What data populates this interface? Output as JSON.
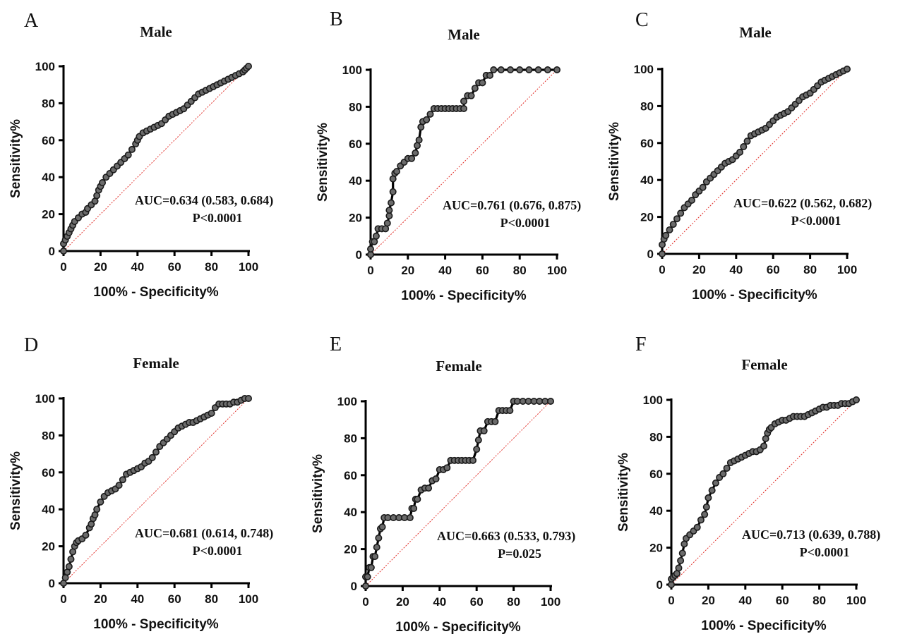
{
  "chart_data": [
    {
      "id": "A",
      "type": "line",
      "panel_label": "A",
      "title": "Male",
      "xlabel": "100% - Specificity%",
      "ylabel": "Sensitivity%",
      "xlim": [
        0,
        100
      ],
      "ylim": [
        0,
        100
      ],
      "xticks": [
        "0",
        "20",
        "40",
        "60",
        "80",
        "100"
      ],
      "yticks": [
        "0",
        "20",
        "40",
        "60",
        "80",
        "100"
      ],
      "annotation_auc": "AUC=0.634 (0.583, 0.684)",
      "annotation_p": "P<0.0001",
      "reference_line": true,
      "series": [
        {
          "x": [
            0,
            0,
            1,
            2,
            3,
            4,
            5,
            6,
            8,
            10,
            12,
            13,
            15,
            17,
            18,
            19,
            20,
            21,
            23,
            25,
            27,
            29,
            31,
            33,
            35,
            37,
            39,
            40,
            41,
            43,
            45,
            47,
            49,
            51,
            53,
            55,
            57,
            59,
            61,
            63,
            65,
            67,
            69,
            71,
            73,
            75,
            77,
            79,
            81,
            83,
            85,
            87,
            89,
            91,
            93,
            95,
            97,
            98,
            99,
            100
          ],
          "y": [
            0,
            4,
            6,
            8,
            10,
            12,
            14,
            16,
            18,
            20,
            21,
            23,
            25,
            27,
            30,
            33,
            35,
            37,
            40,
            42,
            44,
            46,
            48,
            50,
            52,
            55,
            58,
            60,
            62,
            64,
            65,
            66,
            67,
            68,
            69,
            71,
            73,
            74,
            75,
            76,
            77,
            79,
            81,
            83,
            85,
            86,
            87,
            88,
            89,
            90,
            91,
            92,
            93,
            94,
            95,
            96,
            97,
            98,
            99,
            100
          ]
        }
      ]
    },
    {
      "id": "B",
      "type": "line",
      "panel_label": "B",
      "title": "Male",
      "xlabel": "100% - Specificity%",
      "ylabel": "Sensitivity%",
      "xlim": [
        0,
        100
      ],
      "ylim": [
        0,
        100
      ],
      "xticks": [
        "0",
        "20",
        "40",
        "60",
        "80",
        "100"
      ],
      "yticks": [
        "0",
        "20",
        "40",
        "60",
        "80",
        "100"
      ],
      "annotation_auc": "AUC=0.761 (0.676, 0.875)",
      "annotation_p": "P<0.0001",
      "reference_line": true,
      "series": [
        {
          "x": [
            0,
            0,
            1,
            2,
            3,
            4,
            6,
            8,
            9,
            10,
            10,
            11,
            12,
            12,
            13,
            14,
            16,
            18,
            20,
            22,
            24,
            25,
            26,
            27,
            28,
            30,
            32,
            34,
            36,
            38,
            40,
            42,
            44,
            46,
            48,
            50,
            50,
            52,
            54,
            56,
            58,
            60,
            62,
            64,
            66,
            70,
            75,
            80,
            85,
            90,
            95,
            100
          ],
          "y": [
            0,
            3,
            7,
            7,
            10,
            14,
            14,
            14,
            17,
            21,
            24,
            28,
            34,
            41,
            44,
            45,
            48,
            50,
            52,
            52,
            55,
            59,
            62,
            69,
            72,
            73,
            76,
            79,
            79,
            79,
            79,
            79,
            79,
            79,
            79,
            79,
            83,
            86,
            86,
            90,
            93,
            93,
            97,
            97,
            100,
            100,
            100,
            100,
            100,
            100,
            100,
            100
          ]
        }
      ]
    },
    {
      "id": "C",
      "type": "line",
      "panel_label": "C",
      "title": "Male",
      "xlabel": "100% - Specificity%",
      "ylabel": "Sensitivity%",
      "xlim": [
        0,
        100
      ],
      "ylim": [
        0,
        100
      ],
      "xticks": [
        "0",
        "20",
        "40",
        "60",
        "80",
        "100"
      ],
      "yticks": [
        "0",
        "20",
        "40",
        "60",
        "80",
        "100"
      ],
      "annotation_auc": "AUC=0.622 (0.562, 0.682)",
      "annotation_p": "P<0.0001",
      "reference_line": true,
      "series": [
        {
          "x": [
            0,
            0,
            1,
            2,
            4,
            6,
            8,
            10,
            12,
            14,
            16,
            18,
            20,
            22,
            24,
            26,
            28,
            30,
            32,
            34,
            36,
            38,
            40,
            42,
            44,
            46,
            48,
            50,
            52,
            54,
            56,
            58,
            60,
            62,
            64,
            66,
            68,
            70,
            72,
            74,
            76,
            78,
            80,
            82,
            84,
            86,
            88,
            90,
            92,
            94,
            96,
            98,
            100
          ],
          "y": [
            0,
            5,
            8,
            10,
            13,
            16,
            19,
            22,
            25,
            27,
            29,
            32,
            34,
            36,
            39,
            41,
            43,
            45,
            47,
            49,
            50,
            51,
            53,
            55,
            58,
            61,
            64,
            65,
            66,
            67,
            68,
            70,
            72,
            74,
            75,
            76,
            77,
            79,
            81,
            83,
            85,
            86,
            87,
            89,
            91,
            93,
            94,
            95,
            96,
            97,
            98,
            99,
            100
          ]
        }
      ]
    },
    {
      "id": "D",
      "type": "line",
      "panel_label": "D",
      "title": "Female",
      "xlabel": "100% - Specificity%",
      "ylabel": "Sensitivity%",
      "xlim": [
        0,
        100
      ],
      "ylim": [
        0,
        100
      ],
      "xticks": [
        "0",
        "20",
        "40",
        "60",
        "80",
        "100"
      ],
      "yticks": [
        "0",
        "20",
        "40",
        "60",
        "80",
        "100"
      ],
      "annotation_auc": "AUC=0.681 (0.614, 0.748)",
      "annotation_p": "P<0.0001",
      "reference_line": true,
      "series": [
        {
          "x": [
            0,
            1,
            2,
            3,
            4,
            5,
            6,
            7,
            8,
            10,
            12,
            14,
            15,
            16,
            17,
            18,
            20,
            22,
            24,
            26,
            28,
            30,
            32,
            34,
            36,
            38,
            40,
            42,
            44,
            46,
            48,
            50,
            52,
            54,
            56,
            58,
            60,
            62,
            64,
            66,
            68,
            70,
            72,
            74,
            76,
            78,
            80,
            82,
            84,
            86,
            88,
            90,
            92,
            94,
            96,
            98,
            100
          ],
          "y": [
            0,
            3,
            6,
            9,
            13,
            17,
            20,
            22,
            23,
            24,
            26,
            30,
            32,
            35,
            37,
            40,
            44,
            47,
            49,
            50,
            51,
            53,
            56,
            59,
            60,
            61,
            62,
            63,
            65,
            66,
            68,
            71,
            74,
            76,
            78,
            80,
            82,
            84,
            85,
            86,
            87,
            87,
            88,
            89,
            90,
            91,
            92,
            95,
            97,
            97,
            97,
            97,
            98,
            98,
            99,
            100,
            100
          ]
        }
      ]
    },
    {
      "id": "E",
      "type": "line",
      "panel_label": "E",
      "title": "Female",
      "xlabel": "100% - Specificity%",
      "ylabel": "Sensitivity%",
      "xlim": [
        0,
        100
      ],
      "ylim": [
        0,
        100
      ],
      "xticks": [
        "0",
        "20",
        "40",
        "60",
        "80",
        "100"
      ],
      "yticks": [
        "0",
        "20",
        "40",
        "60",
        "80",
        "100"
      ],
      "annotation_auc": "AUC=0.663 (0.533, 0.793)",
      "annotation_p": "P=0.025",
      "reference_line": true,
      "series": [
        {
          "x": [
            0,
            0,
            1,
            2,
            3,
            4,
            5,
            6,
            7,
            8,
            9,
            10,
            12,
            15,
            18,
            21,
            24,
            25,
            26,
            27,
            28,
            30,
            32,
            34,
            36,
            38,
            40,
            42,
            44,
            46,
            48,
            50,
            52,
            54,
            56,
            58,
            60,
            61,
            62,
            64,
            66,
            68,
            70,
            72,
            74,
            76,
            78,
            80,
            82,
            85,
            88,
            91,
            94,
            97,
            100
          ],
          "y": [
            0,
            5,
            5,
            10,
            10,
            16,
            16,
            21,
            26,
            31,
            32,
            37,
            37,
            37,
            37,
            37,
            37,
            42,
            42,
            47,
            47,
            52,
            53,
            53,
            57,
            58,
            63,
            63,
            64,
            68,
            68,
            68,
            68,
            68,
            68,
            68,
            74,
            79,
            84,
            84,
            89,
            89,
            89,
            95,
            95,
            95,
            95,
            100,
            100,
            100,
            100,
            100,
            100,
            100,
            100
          ]
        }
      ]
    },
    {
      "id": "F",
      "type": "line",
      "panel_label": "F",
      "title": "Female",
      "xlabel": "100% - Specificity%",
      "ylabel": "Sensitivity%",
      "xlim": [
        0,
        100
      ],
      "ylim": [
        0,
        100
      ],
      "xticks": [
        "0",
        "20",
        "40",
        "60",
        "80",
        "100"
      ],
      "yticks": [
        "0",
        "20",
        "40",
        "60",
        "80",
        "100"
      ],
      "annotation_auc": "AUC=0.713 (0.639, 0.788)",
      "annotation_p": "P<0.0001",
      "reference_line": true,
      "series": [
        {
          "x": [
            0,
            0,
            1,
            2,
            3,
            4,
            5,
            6,
            7,
            8,
            10,
            12,
            14,
            16,
            18,
            19,
            20,
            22,
            24,
            26,
            28,
            30,
            32,
            34,
            36,
            38,
            40,
            42,
            44,
            46,
            48,
            50,
            51,
            52,
            53,
            54,
            56,
            58,
            60,
            62,
            64,
            66,
            68,
            70,
            72,
            74,
            76,
            78,
            80,
            82,
            84,
            86,
            88,
            90,
            92,
            94,
            96,
            98,
            100
          ],
          "y": [
            0,
            3,
            4,
            5,
            6,
            9,
            13,
            17,
            22,
            25,
            27,
            29,
            31,
            35,
            38,
            42,
            47,
            51,
            55,
            58,
            60,
            63,
            66,
            67,
            68,
            69,
            70,
            71,
            72,
            72,
            73,
            75,
            79,
            82,
            84,
            85,
            87,
            88,
            89,
            89,
            90,
            91,
            91,
            91,
            91,
            92,
            93,
            94,
            95,
            96,
            96,
            97,
            97,
            97,
            98,
            98,
            98,
            99,
            100
          ]
        }
      ]
    }
  ]
}
